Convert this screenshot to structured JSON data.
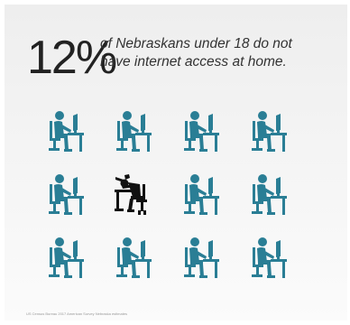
{
  "headline": {
    "percent": "12%",
    "line1": "of Nebraskans under 18 do not",
    "line2": "have internet access at home."
  },
  "figures": [
    {
      "state": "connected",
      "icon": "person-at-computer-icon"
    },
    {
      "state": "connected",
      "icon": "person-at-computer-icon"
    },
    {
      "state": "connected",
      "icon": "person-at-computer-icon"
    },
    {
      "state": "connected",
      "icon": "person-at-computer-icon"
    },
    {
      "state": "connected",
      "icon": "person-at-computer-icon"
    },
    {
      "state": "disconnected",
      "icon": "frustrated-person-at-computer-icon"
    },
    {
      "state": "connected",
      "icon": "person-at-computer-icon"
    },
    {
      "state": "connected",
      "icon": "person-at-computer-icon"
    },
    {
      "state": "connected",
      "icon": "person-at-computer-icon"
    },
    {
      "state": "connected",
      "icon": "person-at-computer-icon"
    },
    {
      "state": "connected",
      "icon": "person-at-computer-icon"
    },
    {
      "state": "connected",
      "icon": "person-at-computer-icon"
    }
  ],
  "colors": {
    "connected": "#2a7e95",
    "disconnected": "#111111"
  },
  "source": "US Census Bureau 2017 American Survey Nebraska estimates"
}
